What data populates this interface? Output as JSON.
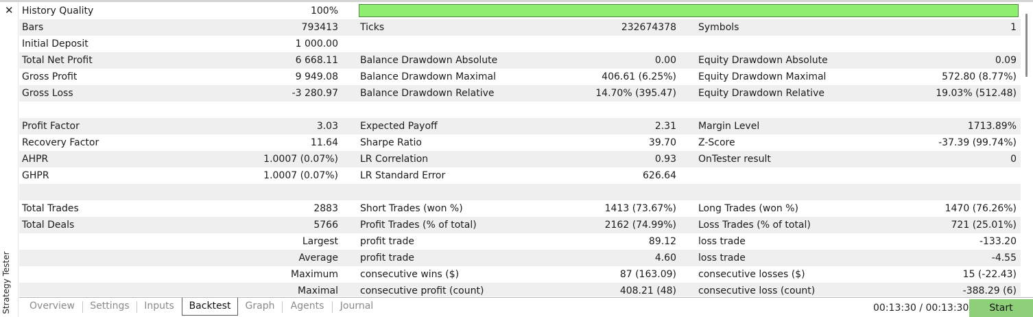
{
  "panel_title": "Strategy Tester",
  "close_glyph": "✕",
  "report": {
    "history_quality": {
      "label": "History Quality",
      "value": "100%",
      "fill_fraction": 1.0
    },
    "rows": [
      {
        "shade": false,
        "l1": "",
        "v1": "",
        "l2": "",
        "v2": "",
        "l3": "",
        "v3": ""
      },
      {
        "shade": true,
        "l1": "Bars",
        "v1": "793413",
        "l2": "Ticks",
        "v2": "232674378",
        "l3": "Symbols",
        "v3": "1"
      },
      {
        "shade": false,
        "l1": "Initial Deposit",
        "v1": "1 000.00",
        "l2": "",
        "v2": "",
        "l3": "",
        "v3": ""
      },
      {
        "shade": true,
        "l1": "Total Net Profit",
        "v1": "6 668.11",
        "l2": "Balance Drawdown Absolute",
        "v2": "0.00",
        "l3": "Equity Drawdown Absolute",
        "v3": "0.09"
      },
      {
        "shade": false,
        "l1": "Gross Profit",
        "v1": "9 949.08",
        "l2": "Balance Drawdown Maximal",
        "v2": "406.61 (6.25%)",
        "l3": "Equity Drawdown Maximal",
        "v3": "572.80 (8.77%)"
      },
      {
        "shade": true,
        "l1": "Gross Loss",
        "v1": "-3 280.97",
        "l2": "Balance Drawdown Relative",
        "v2": "14.70% (395.47)",
        "l3": "Equity Drawdown Relative",
        "v3": "19.03% (512.48)"
      },
      {
        "shade": false,
        "l1": "",
        "v1": "",
        "l2": "",
        "v2": "",
        "l3": "",
        "v3": ""
      },
      {
        "shade": true,
        "l1": "Profit Factor",
        "v1": "3.03",
        "l2": "Expected Payoff",
        "v2": "2.31",
        "l3": "Margin Level",
        "v3": "1713.89%"
      },
      {
        "shade": false,
        "l1": "Recovery Factor",
        "v1": "11.64",
        "l2": "Sharpe Ratio",
        "v2": "39.70",
        "l3": "Z-Score",
        "v3": "-37.39 (99.74%)"
      },
      {
        "shade": true,
        "l1": "AHPR",
        "v1": "1.0007 (0.07%)",
        "l2": "LR Correlation",
        "v2": "0.93",
        "l3": "OnTester result",
        "v3": "0"
      },
      {
        "shade": false,
        "l1": "GHPR",
        "v1": "1.0007 (0.07%)",
        "l2": "LR Standard Error",
        "v2": "626.64",
        "l3": "",
        "v3": ""
      },
      {
        "shade": true,
        "l1": "",
        "v1": "",
        "l2": "",
        "v2": "",
        "l3": "",
        "v3": ""
      },
      {
        "shade": false,
        "l1": "Total Trades",
        "v1": "2883",
        "l2": "Short Trades (won %)",
        "v2": "1413 (73.67%)",
        "l3": "Long Trades (won %)",
        "v3": "1470 (76.26%)"
      },
      {
        "shade": true,
        "l1": "Total Deals",
        "v1": "5766",
        "l2": "Profit Trades (% of total)",
        "v2": "2162 (74.99%)",
        "l3": "Loss Trades (% of total)",
        "v3": "721 (25.01%)"
      },
      {
        "shade": false,
        "l1": "",
        "v1": "Largest",
        "l2": "profit trade",
        "v2": "89.12",
        "l3": "loss trade",
        "v3": "-133.20"
      },
      {
        "shade": true,
        "l1": "",
        "v1": "Average",
        "l2": "profit trade",
        "v2": "4.60",
        "l3": "loss trade",
        "v3": "-4.55"
      },
      {
        "shade": false,
        "l1": "",
        "v1": "Maximum",
        "l2": "consecutive wins ($)",
        "v2": "87 (163.09)",
        "l3": "consecutive losses ($)",
        "v3": "15 (-22.43)"
      },
      {
        "shade": true,
        "l1": "",
        "v1": "Maximal",
        "l2": "consecutive profit (count)",
        "v2": "408.21 (48)",
        "l3": "consecutive loss (count)",
        "v3": "-388.29 (6)"
      }
    ]
  },
  "tabs": [
    {
      "label": "Overview",
      "active": false
    },
    {
      "label": "Settings",
      "active": false
    },
    {
      "label": "Inputs",
      "active": false
    },
    {
      "label": "Backtest",
      "active": true
    },
    {
      "label": "Graph",
      "active": false
    },
    {
      "label": "Agents",
      "active": false
    },
    {
      "label": "Journal",
      "active": false
    }
  ],
  "timer": "00:13:30 / 00:13:30",
  "start_label": "Start",
  "colors": {
    "quality_bar": "#90ee70",
    "start_button": "#8ed07a",
    "row_shade": "#efefef"
  }
}
